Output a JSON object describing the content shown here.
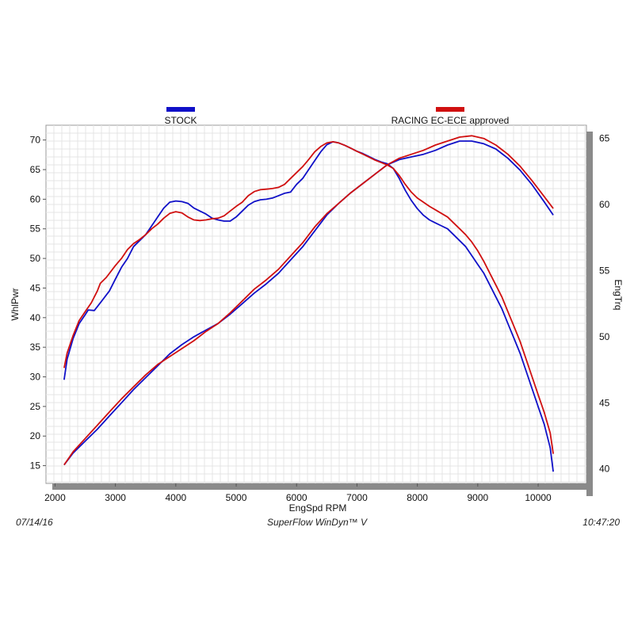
{
  "footer": {
    "date": "07/14/16",
    "software": "SuperFlow WinDyn™ V",
    "time": "10:47:20"
  },
  "chart_data": {
    "type": "line",
    "xlabel": "EngSpd  RPM",
    "ylabel_left": "WhlPwr",
    "ylabel_right": "EngTrq",
    "xlim": [
      1850,
      10800
    ],
    "ylim_left": [
      12,
      72.5
    ],
    "ylim_right": [
      38.9,
      66
    ],
    "x_ticks": [
      2000,
      3000,
      4000,
      5000,
      6000,
      7000,
      8000,
      9000,
      10000
    ],
    "y_left_ticks": [
      15,
      20,
      25,
      30,
      35,
      40,
      45,
      50,
      55,
      60,
      65,
      70
    ],
    "y_right_ticks": [
      40,
      45,
      50,
      55,
      60,
      65
    ],
    "grid": true,
    "legend_position": "top",
    "series": [
      {
        "name": "STOCK",
        "color": "#1010c8",
        "power": [
          [
            2150,
            29.5
          ],
          [
            2200,
            33
          ],
          [
            2300,
            36.5
          ],
          [
            2400,
            39
          ],
          [
            2500,
            40.5
          ],
          [
            2550,
            41.3
          ],
          [
            2650,
            41.2
          ],
          [
            2750,
            42.5
          ],
          [
            2900,
            44.5
          ],
          [
            3000,
            46.5
          ],
          [
            3100,
            48.5
          ],
          [
            3200,
            50
          ],
          [
            3300,
            52
          ],
          [
            3400,
            53
          ],
          [
            3500,
            54
          ],
          [
            3600,
            55.5
          ],
          [
            3700,
            57
          ],
          [
            3800,
            58.5
          ],
          [
            3900,
            59.5
          ],
          [
            4000,
            59.7
          ],
          [
            4100,
            59.6
          ],
          [
            4200,
            59.3
          ],
          [
            4300,
            58.5
          ],
          [
            4400,
            58
          ],
          [
            4500,
            57.5
          ],
          [
            4600,
            56.8
          ],
          [
            4700,
            56.5
          ],
          [
            4800,
            56.3
          ],
          [
            4900,
            56.3
          ],
          [
            5000,
            57
          ],
          [
            5100,
            58
          ],
          [
            5200,
            59
          ],
          [
            5300,
            59.6
          ],
          [
            5400,
            59.9
          ],
          [
            5500,
            60
          ],
          [
            5600,
            60.2
          ],
          [
            5700,
            60.6
          ],
          [
            5800,
            61
          ],
          [
            5900,
            61.2
          ],
          [
            6000,
            62.5
          ],
          [
            6100,
            63.5
          ],
          [
            6200,
            65
          ],
          [
            6300,
            66.5
          ],
          [
            6400,
            68
          ],
          [
            6500,
            69.2
          ],
          [
            6600,
            69.7
          ],
          [
            6700,
            69.5
          ],
          [
            6800,
            69.1
          ],
          [
            6900,
            68.6
          ],
          [
            7000,
            68.1
          ],
          [
            7100,
            67.7
          ],
          [
            7200,
            67.2
          ],
          [
            7300,
            66.7
          ],
          [
            7400,
            66.3
          ],
          [
            7500,
            66
          ],
          [
            7600,
            65.2
          ],
          [
            7700,
            63.5
          ],
          [
            7800,
            61.5
          ],
          [
            7900,
            59.8
          ],
          [
            8000,
            58.4
          ],
          [
            8100,
            57.3
          ],
          [
            8200,
            56.5
          ],
          [
            8300,
            56
          ],
          [
            8400,
            55.5
          ],
          [
            8500,
            55
          ],
          [
            8600,
            54
          ],
          [
            8700,
            53
          ],
          [
            8800,
            52
          ],
          [
            8900,
            50.5
          ],
          [
            9000,
            49
          ],
          [
            9100,
            47.5
          ],
          [
            9200,
            45.5
          ],
          [
            9300,
            43.5
          ],
          [
            9400,
            41.5
          ],
          [
            9500,
            39
          ],
          [
            9600,
            36.5
          ],
          [
            9700,
            34
          ],
          [
            9800,
            31
          ],
          [
            9900,
            28
          ],
          [
            10000,
            25
          ],
          [
            10100,
            22
          ],
          [
            10200,
            18
          ],
          [
            10250,
            14
          ]
        ],
        "torque": [
          [
            2150,
            40.3
          ],
          [
            2300,
            41.2
          ],
          [
            2500,
            42.1
          ],
          [
            2700,
            43
          ],
          [
            2900,
            44
          ],
          [
            3100,
            45
          ],
          [
            3300,
            46
          ],
          [
            3500,
            46.9
          ],
          [
            3700,
            47.8
          ],
          [
            3900,
            48.7
          ],
          [
            4100,
            49.4
          ],
          [
            4300,
            50
          ],
          [
            4500,
            50.5
          ],
          [
            4700,
            51
          ],
          [
            4900,
            51.7
          ],
          [
            5100,
            52.5
          ],
          [
            5300,
            53.3
          ],
          [
            5500,
            54
          ],
          [
            5700,
            54.8
          ],
          [
            5900,
            55.8
          ],
          [
            6100,
            56.8
          ],
          [
            6300,
            58
          ],
          [
            6500,
            59.2
          ],
          [
            6700,
            60.1
          ],
          [
            6900,
            60.9
          ],
          [
            7100,
            61.6
          ],
          [
            7300,
            62.3
          ],
          [
            7500,
            63
          ],
          [
            7700,
            63.4
          ],
          [
            7900,
            63.6
          ],
          [
            8100,
            63.8
          ],
          [
            8300,
            64.1
          ],
          [
            8500,
            64.5
          ],
          [
            8700,
            64.8
          ],
          [
            8900,
            64.8
          ],
          [
            9100,
            64.6
          ],
          [
            9300,
            64.2
          ],
          [
            9500,
            63.5
          ],
          [
            9700,
            62.6
          ],
          [
            9900,
            61.5
          ],
          [
            10100,
            60.2
          ],
          [
            10250,
            59.2
          ]
        ]
      },
      {
        "name": "RACING EC-ECE approved",
        "color": "#d01010",
        "power": [
          [
            2150,
            31.5
          ],
          [
            2200,
            34
          ],
          [
            2300,
            37
          ],
          [
            2400,
            39.5
          ],
          [
            2500,
            41
          ],
          [
            2600,
            42.5
          ],
          [
            2700,
            44.5
          ],
          [
            2750,
            45.8
          ],
          [
            2850,
            46.8
          ],
          [
            3000,
            48.8
          ],
          [
            3100,
            50
          ],
          [
            3200,
            51.5
          ],
          [
            3300,
            52.5
          ],
          [
            3400,
            53.2
          ],
          [
            3500,
            54
          ],
          [
            3600,
            55
          ],
          [
            3700,
            55.8
          ],
          [
            3800,
            56.8
          ],
          [
            3900,
            57.6
          ],
          [
            4000,
            57.9
          ],
          [
            4100,
            57.7
          ],
          [
            4200,
            57
          ],
          [
            4300,
            56.5
          ],
          [
            4400,
            56.4
          ],
          [
            4500,
            56.5
          ],
          [
            4600,
            56.7
          ],
          [
            4700,
            56.8
          ],
          [
            4800,
            57.2
          ],
          [
            4900,
            58
          ],
          [
            5000,
            58.8
          ],
          [
            5100,
            59.5
          ],
          [
            5200,
            60.6
          ],
          [
            5300,
            61.3
          ],
          [
            5400,
            61.6
          ],
          [
            5500,
            61.7
          ],
          [
            5600,
            61.8
          ],
          [
            5700,
            62
          ],
          [
            5800,
            62.5
          ],
          [
            5900,
            63.5
          ],
          [
            6000,
            64.5
          ],
          [
            6100,
            65.5
          ],
          [
            6200,
            66.7
          ],
          [
            6300,
            68
          ],
          [
            6400,
            68.9
          ],
          [
            6500,
            69.5
          ],
          [
            6600,
            69.7
          ],
          [
            6700,
            69.5
          ],
          [
            6800,
            69.1
          ],
          [
            6900,
            68.6
          ],
          [
            7000,
            68.1
          ],
          [
            7100,
            67.6
          ],
          [
            7200,
            67.1
          ],
          [
            7300,
            66.6
          ],
          [
            7400,
            66.2
          ],
          [
            7500,
            65.8
          ],
          [
            7600,
            65.2
          ],
          [
            7700,
            64
          ],
          [
            7800,
            62.5
          ],
          [
            7900,
            61.2
          ],
          [
            8000,
            60.2
          ],
          [
            8100,
            59.5
          ],
          [
            8200,
            58.8
          ],
          [
            8300,
            58.2
          ],
          [
            8400,
            57.6
          ],
          [
            8500,
            57
          ],
          [
            8600,
            56
          ],
          [
            8700,
            55
          ],
          [
            8800,
            54
          ],
          [
            8900,
            52.8
          ],
          [
            9000,
            51.3
          ],
          [
            9100,
            49.5
          ],
          [
            9200,
            47.5
          ],
          [
            9300,
            45.5
          ],
          [
            9400,
            43.5
          ],
          [
            9500,
            41
          ],
          [
            9600,
            38.5
          ],
          [
            9700,
            36
          ],
          [
            9800,
            33
          ],
          [
            9900,
            30
          ],
          [
            10000,
            27
          ],
          [
            10100,
            24
          ],
          [
            10200,
            20.5
          ],
          [
            10250,
            17
          ]
        ],
        "torque": [
          [
            2150,
            40.3
          ],
          [
            2300,
            41.3
          ],
          [
            2500,
            42.3
          ],
          [
            2700,
            43.3
          ],
          [
            2900,
            44.3
          ],
          [
            3100,
            45.3
          ],
          [
            3300,
            46.2
          ],
          [
            3500,
            47.1
          ],
          [
            3700,
            47.9
          ],
          [
            3900,
            48.5
          ],
          [
            4100,
            49.1
          ],
          [
            4300,
            49.7
          ],
          [
            4500,
            50.4
          ],
          [
            4700,
            51
          ],
          [
            4900,
            51.8
          ],
          [
            5100,
            52.7
          ],
          [
            5300,
            53.6
          ],
          [
            5500,
            54.3
          ],
          [
            5700,
            55.1
          ],
          [
            5900,
            56.1
          ],
          [
            6100,
            57.1
          ],
          [
            6300,
            58.3
          ],
          [
            6500,
            59.3
          ],
          [
            6700,
            60.1
          ],
          [
            6900,
            60.9
          ],
          [
            7100,
            61.6
          ],
          [
            7300,
            62.3
          ],
          [
            7500,
            63
          ],
          [
            7700,
            63.5
          ],
          [
            7900,
            63.8
          ],
          [
            8100,
            64.1
          ],
          [
            8300,
            64.5
          ],
          [
            8500,
            64.8
          ],
          [
            8700,
            65.1
          ],
          [
            8900,
            65.2
          ],
          [
            9100,
            65
          ],
          [
            9300,
            64.5
          ],
          [
            9500,
            63.8
          ],
          [
            9700,
            62.9
          ],
          [
            9900,
            61.8
          ],
          [
            10100,
            60.6
          ],
          [
            10250,
            59.7
          ]
        ]
      }
    ]
  }
}
